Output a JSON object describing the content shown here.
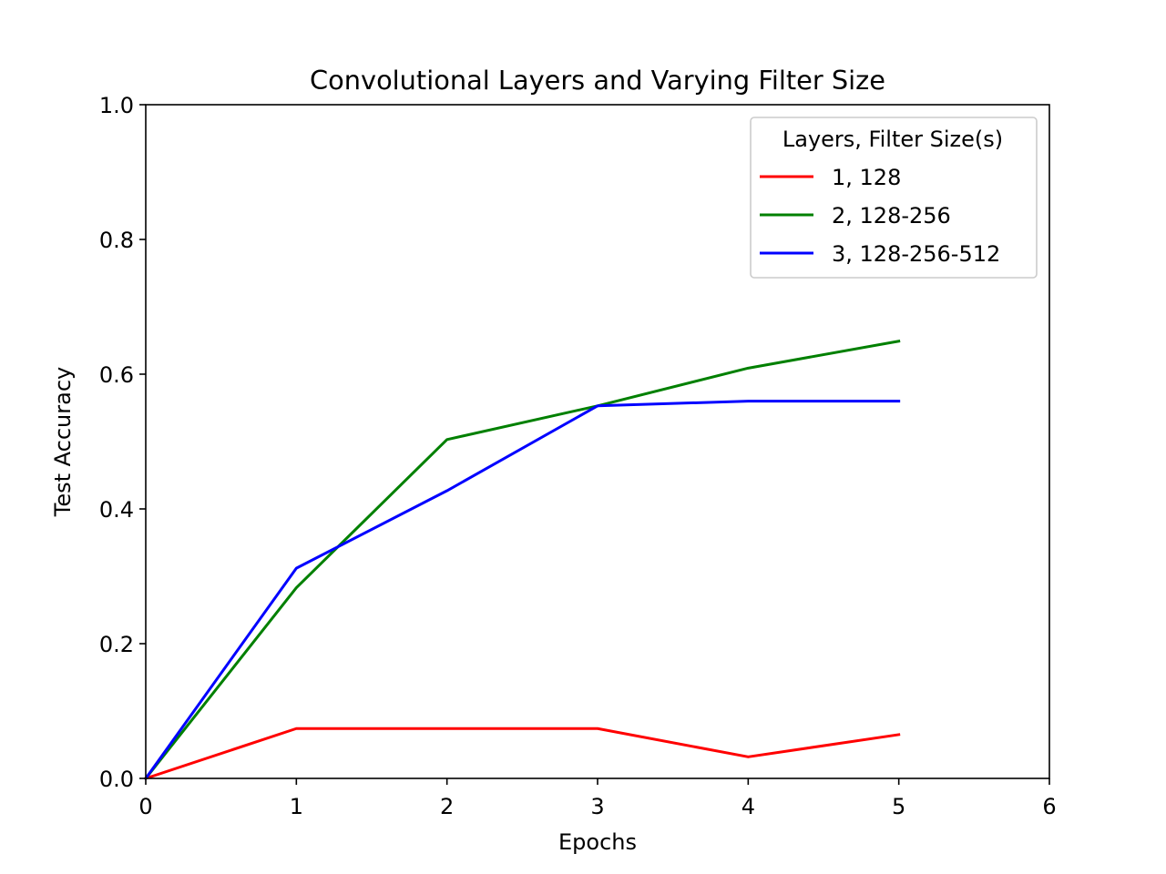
{
  "chart_data": {
    "type": "line",
    "title": "Convolutional Layers and Varying Filter Size",
    "xlabel": "Epochs",
    "ylabel": "Test Accuracy",
    "xlim": [
      0,
      6
    ],
    "ylim": [
      0,
      1.0
    ],
    "xticks": [
      "0",
      "1",
      "2",
      "3",
      "4",
      "5",
      "6"
    ],
    "yticks": [
      "0.0",
      "0.2",
      "0.4",
      "0.6",
      "0.8",
      "1.0"
    ],
    "grid": false,
    "legend": {
      "title": "Layers, Filter Size(s)",
      "placement": "top-right"
    },
    "x": [
      0,
      1,
      2,
      3,
      4,
      5
    ],
    "series": [
      {
        "name": "1, 128",
        "color": "#ff0000",
        "values": [
          0.0,
          0.074,
          0.074,
          0.074,
          0.032,
          0.065
        ]
      },
      {
        "name": "2, 128-256",
        "color": "#008000",
        "values": [
          0.0,
          0.283,
          0.503,
          0.553,
          0.609,
          0.649
        ]
      },
      {
        "name": "3, 128-256-512",
        "color": "#0000ff",
        "values": [
          0.0,
          0.312,
          0.427,
          0.553,
          0.56,
          0.56
        ]
      }
    ]
  }
}
